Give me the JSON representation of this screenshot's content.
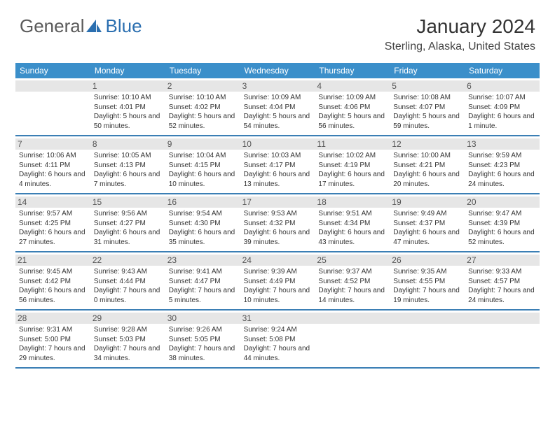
{
  "logo": {
    "general": "General",
    "blue": "Blue"
  },
  "title": "January 2024",
  "location": "Sterling, Alaska, United States",
  "colors": {
    "header_bg": "#3b8fca",
    "border": "#3b7fb5",
    "daynum_bg": "#e6e6e6",
    "logo_gray": "#5a5a5a",
    "logo_blue": "#2b6fb0"
  },
  "day_headers": [
    "Sunday",
    "Monday",
    "Tuesday",
    "Wednesday",
    "Thursday",
    "Friday",
    "Saturday"
  ],
  "weeks": [
    [
      {
        "n": "",
        "sunrise": "",
        "sunset": "",
        "daylight": ""
      },
      {
        "n": "1",
        "sunrise": "Sunrise: 10:10 AM",
        "sunset": "Sunset: 4:01 PM",
        "daylight": "Daylight: 5 hours and 50 minutes."
      },
      {
        "n": "2",
        "sunrise": "Sunrise: 10:10 AM",
        "sunset": "Sunset: 4:02 PM",
        "daylight": "Daylight: 5 hours and 52 minutes."
      },
      {
        "n": "3",
        "sunrise": "Sunrise: 10:09 AM",
        "sunset": "Sunset: 4:04 PM",
        "daylight": "Daylight: 5 hours and 54 minutes."
      },
      {
        "n": "4",
        "sunrise": "Sunrise: 10:09 AM",
        "sunset": "Sunset: 4:06 PM",
        "daylight": "Daylight: 5 hours and 56 minutes."
      },
      {
        "n": "5",
        "sunrise": "Sunrise: 10:08 AM",
        "sunset": "Sunset: 4:07 PM",
        "daylight": "Daylight: 5 hours and 59 minutes."
      },
      {
        "n": "6",
        "sunrise": "Sunrise: 10:07 AM",
        "sunset": "Sunset: 4:09 PM",
        "daylight": "Daylight: 6 hours and 1 minute."
      }
    ],
    [
      {
        "n": "7",
        "sunrise": "Sunrise: 10:06 AM",
        "sunset": "Sunset: 4:11 PM",
        "daylight": "Daylight: 6 hours and 4 minutes."
      },
      {
        "n": "8",
        "sunrise": "Sunrise: 10:05 AM",
        "sunset": "Sunset: 4:13 PM",
        "daylight": "Daylight: 6 hours and 7 minutes."
      },
      {
        "n": "9",
        "sunrise": "Sunrise: 10:04 AM",
        "sunset": "Sunset: 4:15 PM",
        "daylight": "Daylight: 6 hours and 10 minutes."
      },
      {
        "n": "10",
        "sunrise": "Sunrise: 10:03 AM",
        "sunset": "Sunset: 4:17 PM",
        "daylight": "Daylight: 6 hours and 13 minutes."
      },
      {
        "n": "11",
        "sunrise": "Sunrise: 10:02 AM",
        "sunset": "Sunset: 4:19 PM",
        "daylight": "Daylight: 6 hours and 17 minutes."
      },
      {
        "n": "12",
        "sunrise": "Sunrise: 10:00 AM",
        "sunset": "Sunset: 4:21 PM",
        "daylight": "Daylight: 6 hours and 20 minutes."
      },
      {
        "n": "13",
        "sunrise": "Sunrise: 9:59 AM",
        "sunset": "Sunset: 4:23 PM",
        "daylight": "Daylight: 6 hours and 24 minutes."
      }
    ],
    [
      {
        "n": "14",
        "sunrise": "Sunrise: 9:57 AM",
        "sunset": "Sunset: 4:25 PM",
        "daylight": "Daylight: 6 hours and 27 minutes."
      },
      {
        "n": "15",
        "sunrise": "Sunrise: 9:56 AM",
        "sunset": "Sunset: 4:27 PM",
        "daylight": "Daylight: 6 hours and 31 minutes."
      },
      {
        "n": "16",
        "sunrise": "Sunrise: 9:54 AM",
        "sunset": "Sunset: 4:30 PM",
        "daylight": "Daylight: 6 hours and 35 minutes."
      },
      {
        "n": "17",
        "sunrise": "Sunrise: 9:53 AM",
        "sunset": "Sunset: 4:32 PM",
        "daylight": "Daylight: 6 hours and 39 minutes."
      },
      {
        "n": "18",
        "sunrise": "Sunrise: 9:51 AM",
        "sunset": "Sunset: 4:34 PM",
        "daylight": "Daylight: 6 hours and 43 minutes."
      },
      {
        "n": "19",
        "sunrise": "Sunrise: 9:49 AM",
        "sunset": "Sunset: 4:37 PM",
        "daylight": "Daylight: 6 hours and 47 minutes."
      },
      {
        "n": "20",
        "sunrise": "Sunrise: 9:47 AM",
        "sunset": "Sunset: 4:39 PM",
        "daylight": "Daylight: 6 hours and 52 minutes."
      }
    ],
    [
      {
        "n": "21",
        "sunrise": "Sunrise: 9:45 AM",
        "sunset": "Sunset: 4:42 PM",
        "daylight": "Daylight: 6 hours and 56 minutes."
      },
      {
        "n": "22",
        "sunrise": "Sunrise: 9:43 AM",
        "sunset": "Sunset: 4:44 PM",
        "daylight": "Daylight: 7 hours and 0 minutes."
      },
      {
        "n": "23",
        "sunrise": "Sunrise: 9:41 AM",
        "sunset": "Sunset: 4:47 PM",
        "daylight": "Daylight: 7 hours and 5 minutes."
      },
      {
        "n": "24",
        "sunrise": "Sunrise: 9:39 AM",
        "sunset": "Sunset: 4:49 PM",
        "daylight": "Daylight: 7 hours and 10 minutes."
      },
      {
        "n": "25",
        "sunrise": "Sunrise: 9:37 AM",
        "sunset": "Sunset: 4:52 PM",
        "daylight": "Daylight: 7 hours and 14 minutes."
      },
      {
        "n": "26",
        "sunrise": "Sunrise: 9:35 AM",
        "sunset": "Sunset: 4:55 PM",
        "daylight": "Daylight: 7 hours and 19 minutes."
      },
      {
        "n": "27",
        "sunrise": "Sunrise: 9:33 AM",
        "sunset": "Sunset: 4:57 PM",
        "daylight": "Daylight: 7 hours and 24 minutes."
      }
    ],
    [
      {
        "n": "28",
        "sunrise": "Sunrise: 9:31 AM",
        "sunset": "Sunset: 5:00 PM",
        "daylight": "Daylight: 7 hours and 29 minutes."
      },
      {
        "n": "29",
        "sunrise": "Sunrise: 9:28 AM",
        "sunset": "Sunset: 5:03 PM",
        "daylight": "Daylight: 7 hours and 34 minutes."
      },
      {
        "n": "30",
        "sunrise": "Sunrise: 9:26 AM",
        "sunset": "Sunset: 5:05 PM",
        "daylight": "Daylight: 7 hours and 38 minutes."
      },
      {
        "n": "31",
        "sunrise": "Sunrise: 9:24 AM",
        "sunset": "Sunset: 5:08 PM",
        "daylight": "Daylight: 7 hours and 44 minutes."
      },
      {
        "n": "",
        "sunrise": "",
        "sunset": "",
        "daylight": ""
      },
      {
        "n": "",
        "sunrise": "",
        "sunset": "",
        "daylight": ""
      },
      {
        "n": "",
        "sunrise": "",
        "sunset": "",
        "daylight": ""
      }
    ]
  ]
}
